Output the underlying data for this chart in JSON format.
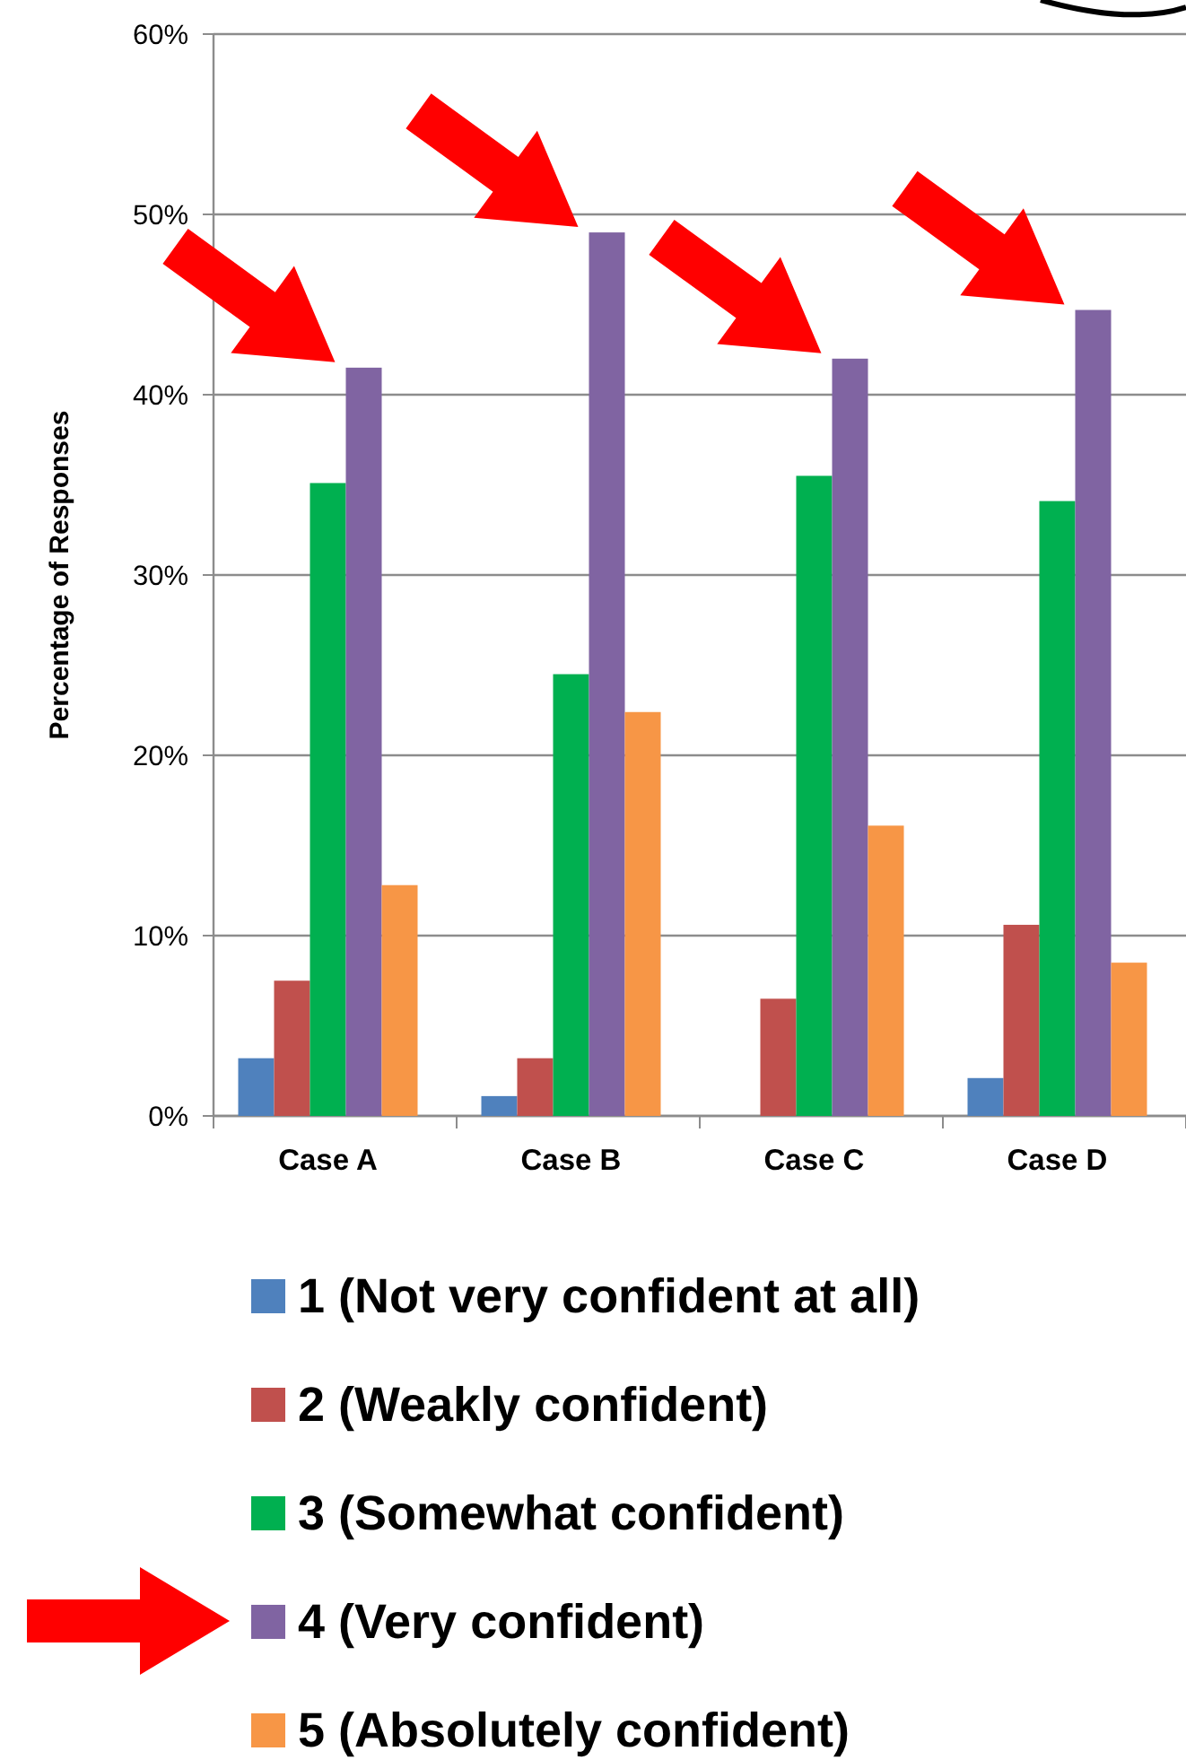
{
  "chart_data": {
    "type": "bar",
    "ylabel": "Percentage of Responses",
    "categories": [
      "Case A",
      "Case B",
      "Case C",
      "Case D"
    ],
    "series": [
      {
        "name": "1 (Not very confident at all)",
        "color": "#4f81bd",
        "values": [
          3.2,
          1.1,
          0,
          2.1
        ]
      },
      {
        "name": "2 (Weakly confident)",
        "color": "#c0504d",
        "values": [
          7.5,
          3.2,
          6.5,
          10.6
        ]
      },
      {
        "name": "3 (Somewhat confident)",
        "color": "#00b050",
        "values": [
          35.1,
          24.5,
          35.5,
          34.1
        ]
      },
      {
        "name": "4 (Very confident)",
        "color": "#8064a2",
        "values": [
          41.5,
          49.0,
          42.0,
          44.7
        ]
      },
      {
        "name": "5 (Absolutely confident)",
        "color": "#f79646",
        "values": [
          12.8,
          22.4,
          16.1,
          8.5
        ]
      }
    ],
    "ylim": [
      0,
      60
    ],
    "yticks": [
      {
        "value": 0,
        "label": "0%"
      },
      {
        "value": 10,
        "label": "10%"
      },
      {
        "value": 20,
        "label": "20%"
      },
      {
        "value": 30,
        "label": "30%"
      },
      {
        "value": 40,
        "label": "40%"
      },
      {
        "value": 50,
        "label": "50%"
      },
      {
        "value": 60,
        "label": "60%"
      }
    ],
    "grid": "y",
    "legend": "bottom"
  }
}
